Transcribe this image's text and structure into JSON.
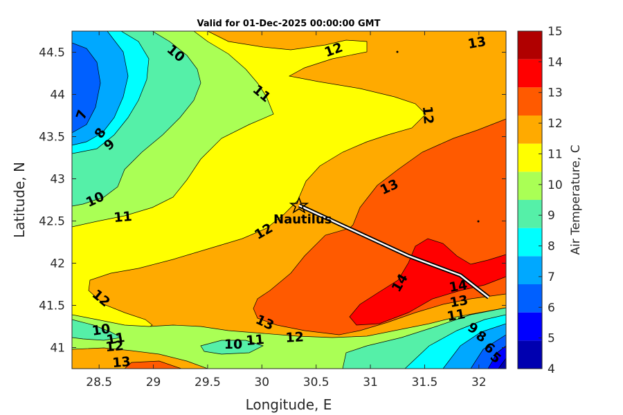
{
  "title": "Valid for 01-Dec-2025 00:00:00 GMT",
  "x_axis": {
    "label": "Longitude, E",
    "range": [
      28.25,
      32.25
    ],
    "ticks": [
      "28.5",
      "29",
      "29.5",
      "30",
      "30.5",
      "31",
      "31.5",
      "32"
    ]
  },
  "y_axis": {
    "label": "Latitude, N",
    "range": [
      40.75,
      44.75
    ],
    "ticks": [
      "41",
      "41.5",
      "42",
      "42.5",
      "43",
      "43.5",
      "44",
      "44.5"
    ]
  },
  "colorbar": {
    "label": "Air Temperature, C",
    "ticks": [
      "4",
      "5",
      "6",
      "7",
      "8",
      "9",
      "10",
      "11",
      "12",
      "13",
      "14",
      "15"
    ],
    "colors": [
      "#0000b0",
      "#0000ff",
      "#0060ff",
      "#00a8ff",
      "#00ffff",
      "#55f0a8",
      "#aaff55",
      "#ffff00",
      "#ffaa00",
      "#ff5a00",
      "#ff0000",
      "#b00000"
    ]
  },
  "map": {
    "station": {
      "name": "Nautilus",
      "lon": 30.35,
      "lat": 42.67,
      "marker": "star-icon"
    },
    "route": [
      [
        30.35,
        42.67
      ],
      [
        31.35,
        42.07
      ],
      [
        31.82,
        41.85
      ],
      [
        32.08,
        41.6
      ]
    ],
    "contour_labels": [
      "7",
      "8",
      "9",
      "10",
      "10",
      "10",
      "10",
      "11",
      "11",
      "11",
      "11",
      "11",
      "12",
      "12",
      "12",
      "12",
      "12",
      "12",
      "13",
      "13",
      "13",
      "13",
      "13",
      "14",
      "14",
      "8",
      "9",
      "6",
      "5"
    ]
  }
}
